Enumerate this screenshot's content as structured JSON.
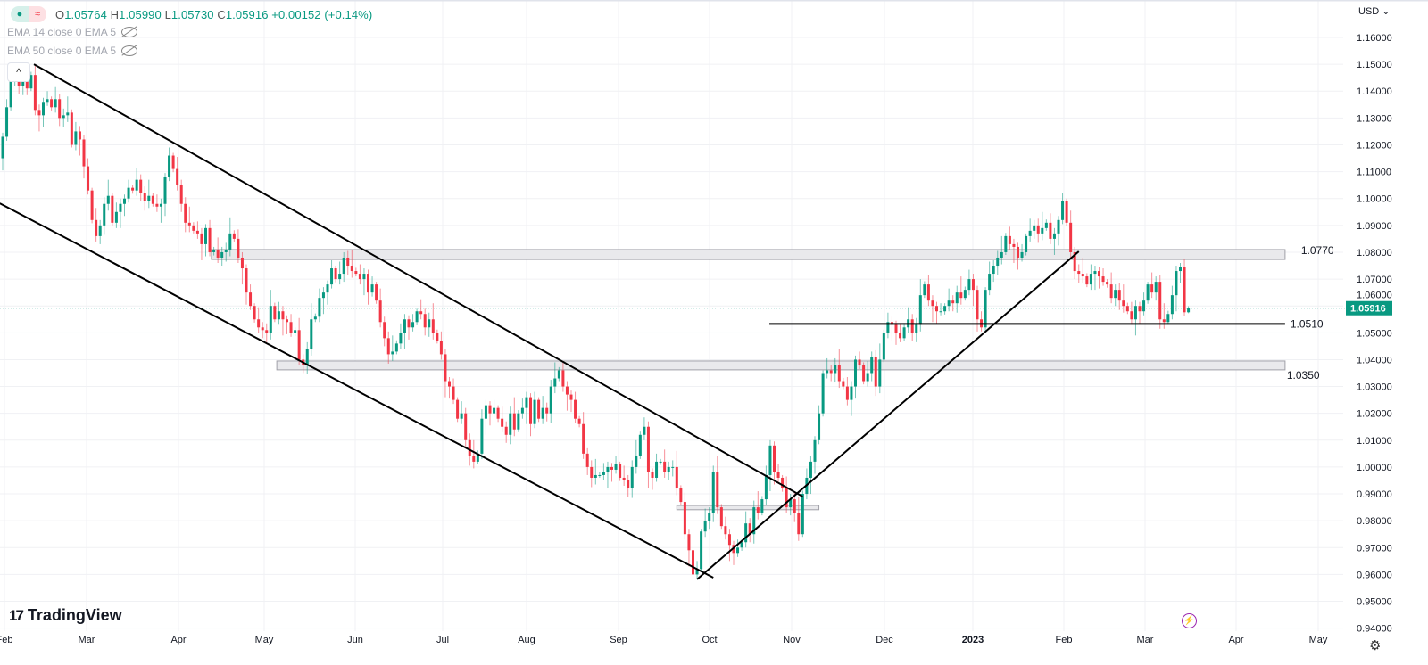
{
  "legend": {
    "ohlc_o_label": "O",
    "ohlc_o": "1.05764",
    "ohlc_h_label": "H",
    "ohlc_h": "1.05990",
    "ohlc_l_label": "L",
    "ohlc_l": "1.05730",
    "ohlc_c_label": "C",
    "ohlc_c": "1.05916",
    "change": "+0.00152 (+0.14%)",
    "ema1": "EMA 14 close 0 EMA 5",
    "ema2": "EMA 50 close 0 EMA 5",
    "collapse_icon": "^"
  },
  "price_axis": {
    "currency": "USD ⌄",
    "current_price": "1.05916",
    "ticks": [
      "1.16000",
      "1.15000",
      "1.14000",
      "1.13000",
      "1.12000",
      "1.11000",
      "1.10000",
      "1.09000",
      "1.08000",
      "1.07000",
      "1.06000",
      "1.05000",
      "1.04000",
      "1.03000",
      "1.02000",
      "1.01000",
      "1.00000",
      "0.99000",
      "0.98000",
      "0.97000",
      "0.96000",
      "0.95000",
      "0.94000"
    ]
  },
  "brand": "TradingView",
  "colors": {
    "up": "#089981",
    "down": "#f23645",
    "accent": "#9c27b0"
  },
  "chart_data": {
    "type": "candlestick",
    "ylabel": "USD",
    "ylim": [
      0.935,
      1.1645
    ],
    "x_tick_labels": [
      "Feb",
      "Mar",
      "Apr",
      "May",
      "Jun",
      "Jul",
      "Aug",
      "Sep",
      "Oct",
      "Nov",
      "Dec",
      "2023",
      "Feb",
      "Mar",
      "Apr",
      "May"
    ],
    "first_open": 1.115,
    "closes": [
      1.123,
      1.134,
      1.144,
      1.145,
      1.142,
      1.144,
      1.141,
      1.146,
      1.133,
      1.131,
      1.136,
      1.137,
      1.134,
      1.137,
      1.13,
      1.131,
      1.132,
      1.12,
      1.125,
      1.122,
      1.112,
      1.103,
      1.092,
      1.086,
      1.09,
      1.098,
      1.101,
      1.091,
      1.095,
      1.098,
      1.1,
      1.104,
      1.103,
      1.107,
      1.102,
      1.099,
      1.101,
      1.098,
      1.097,
      1.098,
      1.108,
      1.116,
      1.111,
      1.105,
      1.098,
      1.091,
      1.09,
      1.088,
      1.087,
      1.083,
      1.089,
      1.08,
      1.081,
      1.078,
      1.08,
      1.081,
      1.087,
      1.085,
      1.078,
      1.074,
      1.065,
      1.06,
      1.055,
      1.052,
      1.051,
      1.05,
      1.06,
      1.055,
      1.058,
      1.055,
      1.054,
      1.05,
      1.051,
      1.04,
      1.038,
      1.044,
      1.055,
      1.056,
      1.063,
      1.065,
      1.068,
      1.074,
      1.07,
      1.072,
      1.078,
      1.075,
      1.073,
      1.072,
      1.07,
      1.072,
      1.065,
      1.068,
      1.062,
      1.054,
      1.048,
      1.042,
      1.043,
      1.046,
      1.05,
      1.055,
      1.052,
      1.054,
      1.058,
      1.057,
      1.052,
      1.055,
      1.05,
      1.047,
      1.042,
      1.032,
      1.03,
      1.025,
      1.018,
      1.02,
      1.01,
      1.004,
      1.002,
      1.005,
      1.018,
      1.023,
      1.02,
      1.022,
      1.018,
      1.015,
      1.012,
      1.02,
      1.014,
      1.02,
      1.022,
      1.026,
      1.016,
      1.025,
      1.018,
      1.022,
      1.02,
      1.03,
      1.033,
      1.036,
      1.03,
      1.027,
      1.025,
      1.018,
      1.016,
      1.005,
      1.0,
      0.996,
      0.997,
      0.997,
      0.998,
      1.0,
      0.999,
      1.001,
      0.996,
      0.995,
      0.992,
      1.0,
      1.004,
      1.012,
      1.015,
      0.998,
      0.996,
      1.002,
      1.002,
      0.998,
      1.0,
      1.0,
      0.992,
      0.987,
      0.975,
      0.969,
      0.96,
      0.962,
      0.976,
      0.98,
      0.983,
      0.998,
      0.985,
      0.978,
      0.975,
      0.971,
      0.968,
      0.97,
      0.972,
      0.979,
      0.975,
      0.985,
      0.983,
      0.988,
      0.997,
      1.008,
      0.998,
      0.996,
      0.992,
      0.985,
      0.988,
      0.983,
      0.975,
      0.99,
      0.996,
      1.002,
      1.01,
      1.02,
      1.035,
      1.036,
      1.035,
      1.038,
      1.032,
      1.03,
      1.025,
      1.03,
      1.04,
      1.038,
      1.032,
      1.035,
      1.041,
      1.03,
      1.04,
      1.05,
      1.054,
      1.053,
      1.05,
      1.048,
      1.052,
      1.055,
      1.05,
      1.053,
      1.064,
      1.068,
      1.062,
      1.06,
      1.058,
      1.058,
      1.06,
      1.062,
      1.061,
      1.065,
      1.063,
      1.066,
      1.07,
      1.066,
      1.055,
      1.052,
      1.066,
      1.072,
      1.075,
      1.078,
      1.08,
      1.086,
      1.083,
      1.082,
      1.078,
      1.08,
      1.086,
      1.088,
      1.09,
      1.087,
      1.089,
      1.091,
      1.085,
      1.087,
      1.092,
      1.099,
      1.091,
      1.08,
      1.073,
      1.072,
      1.071,
      1.068,
      1.072,
      1.073,
      1.071,
      1.069,
      1.068,
      1.063,
      1.066,
      1.062,
      1.06,
      1.058,
      1.055,
      1.06,
      1.058,
      1.062,
      1.068,
      1.065,
      1.069,
      1.055,
      1.054,
      1.057,
      1.064,
      1.073,
      1.0745,
      1.05764,
      1.05916
    ],
    "last_bar": {
      "open": 1.05764,
      "high": 1.0599,
      "low": 1.0573,
      "close": 1.05916
    },
    "drawings": {
      "trendlines": [
        {
          "name": "channel-upper",
          "from": [
            7.7,
            1.15
          ],
          "to": [
            197,
            0.989
          ]
        },
        {
          "name": "channel-lower",
          "from": [
            -0.7,
            1.0982
          ],
          "to": [
            175,
            0.9588
          ]
        },
        {
          "name": "rising-trendline",
          "from": [
            171,
            0.9582
          ],
          "to": [
            265,
            1.0803
          ]
        }
      ],
      "zones": [
        {
          "name": "zone-1-0770",
          "label": "1.0770",
          "from": 51.4,
          "to": 315.8,
          "top": 1.081,
          "bottom": 1.0773
        },
        {
          "name": "zone-1-0350",
          "label": "1.0350",
          "from": 67.5,
          "to": 315.8,
          "top": 1.0395,
          "bottom": 1.0362
        },
        {
          "name": "zone-small",
          "label": "",
          "from": 166,
          "to": 201,
          "top": 0.9857,
          "bottom": 0.9841
        }
      ],
      "hlines": [
        {
          "name": "hline-1-0510",
          "label": "1.0510",
          "from": 188.8,
          "to": 315.8,
          "price": 1.0533
        }
      ]
    }
  }
}
